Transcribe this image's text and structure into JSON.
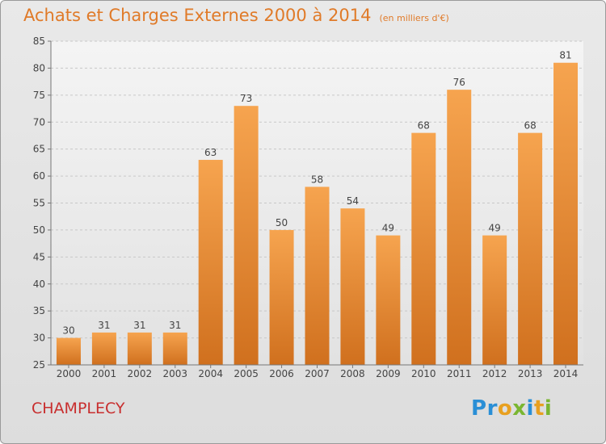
{
  "title": "Achats et Charges Externes 2000 à 2014",
  "subtitle": "(en milliers d'€)",
  "town": "CHAMPLECY",
  "logo": {
    "text": "Proxiti",
    "letters": [
      "P",
      "r",
      "o",
      "x",
      "i",
      "t",
      "i"
    ],
    "colors": [
      "#2a8fd6",
      "#2a8fd6",
      "#e8a020",
      "#7ab631",
      "#2a8fd6",
      "#e8a020",
      "#7ab631"
    ]
  },
  "colors": {
    "title": "#e07a28",
    "town": "#c82e2e",
    "bar_light": "#f6a44f",
    "bar_dark": "#d0701e"
  },
  "chart_data": {
    "type": "bar",
    "categories": [
      "2000",
      "2001",
      "2002",
      "2003",
      "2004",
      "2005",
      "2006",
      "2007",
      "2008",
      "2009",
      "2010",
      "2011",
      "2012",
      "2013",
      "2014"
    ],
    "values": [
      30,
      31,
      31,
      31,
      63,
      73,
      50,
      58,
      54,
      49,
      68,
      76,
      49,
      68,
      81
    ],
    "ylim": [
      25,
      85
    ],
    "yticks": [
      25,
      30,
      35,
      40,
      45,
      50,
      55,
      60,
      65,
      70,
      75,
      80,
      85
    ],
    "grid": true,
    "title": "Achats et Charges Externes 2000 à 2014",
    "xlabel": "",
    "ylabel": ""
  }
}
